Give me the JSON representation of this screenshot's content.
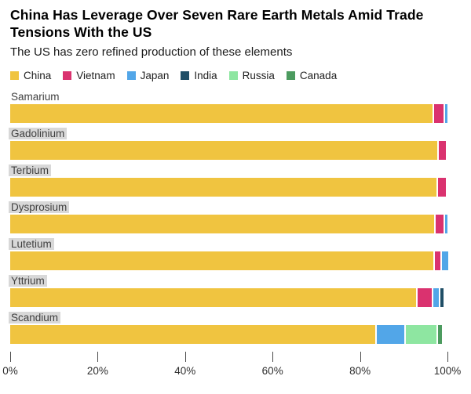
{
  "header": {
    "title_lines": [
      "China Has Leverage Over Seven Rare Earth Metals Amid Trade",
      "Tensions With the US"
    ],
    "subtitle": "The US has zero refined production of these elements"
  },
  "colors": {
    "series": {
      "China": "#F0C440",
      "Vietnam": "#DA326F",
      "Japan": "#52A6E8",
      "India": "#1F4E66",
      "Russia": "#8EE6A1",
      "Canada": "#4C9B5F"
    },
    "label_highlight_bg": "#D8D8D8",
    "tick": "#4A4A4A"
  },
  "legend": {
    "items": [
      "China",
      "Vietnam",
      "Japan",
      "India",
      "Russia",
      "Canada"
    ]
  },
  "chart_data": {
    "type": "bar",
    "orientation": "horizontal",
    "stacked": true,
    "unit": "percent of refined production",
    "title": "China Has Leverage Over Seven Rare Earth Metals Amid Trade Tensions With the US",
    "subtitle": "The US has zero refined production of these elements",
    "xlabel": "",
    "ylabel": "",
    "xlim": [
      0,
      100
    ],
    "x_ticks": [
      0,
      20,
      40,
      60,
      80,
      100
    ],
    "x_tick_labels": [
      "0%",
      "20%",
      "40%",
      "60%",
      "80%",
      "100%"
    ],
    "legend_position": "top",
    "grid": false,
    "categories": [
      "Samarium",
      "Gadolinium",
      "Terbium",
      "Dysprosium",
      "Lutetium",
      "Yttrium",
      "Scandium"
    ],
    "rows": [
      {
        "label": "Samarium",
        "label_highlight": false,
        "segments": [
          {
            "name": "China",
            "value": 96.5
          },
          {
            "name": "Vietnam",
            "value": 2.2
          },
          {
            "name": "Japan",
            "value": 0.6
          }
        ]
      },
      {
        "label": "Gadolinium",
        "label_highlight": true,
        "segments": [
          {
            "name": "China",
            "value": 97.7
          },
          {
            "name": "Vietnam",
            "value": 1.6
          }
        ]
      },
      {
        "label": "Terbium",
        "label_highlight": true,
        "segments": [
          {
            "name": "China",
            "value": 97.5
          },
          {
            "name": "Vietnam",
            "value": 1.8
          }
        ]
      },
      {
        "label": "Dysprosium",
        "label_highlight": true,
        "segments": [
          {
            "name": "China",
            "value": 96.9
          },
          {
            "name": "Vietnam",
            "value": 1.8
          },
          {
            "name": "Japan",
            "value": 0.5
          }
        ]
      },
      {
        "label": "Lutetium",
        "label_highlight": true,
        "segments": [
          {
            "name": "China",
            "value": 96.8
          },
          {
            "name": "Vietnam",
            "value": 1.2
          },
          {
            "name": "Japan",
            "value": 1.4
          }
        ]
      },
      {
        "label": "Yttrium",
        "label_highlight": true,
        "segments": [
          {
            "name": "China",
            "value": 92.8
          },
          {
            "name": "Vietnam",
            "value": 3.2
          },
          {
            "name": "Japan",
            "value": 1.3
          },
          {
            "name": "India",
            "value": 0.8
          }
        ]
      },
      {
        "label": "Scandium",
        "label_highlight": true,
        "segments": [
          {
            "name": "China",
            "value": 83.5
          },
          {
            "name": "Japan",
            "value": 6.3
          },
          {
            "name": "Russia",
            "value": 6.9
          },
          {
            "name": "Canada",
            "value": 1.0
          }
        ]
      }
    ]
  }
}
